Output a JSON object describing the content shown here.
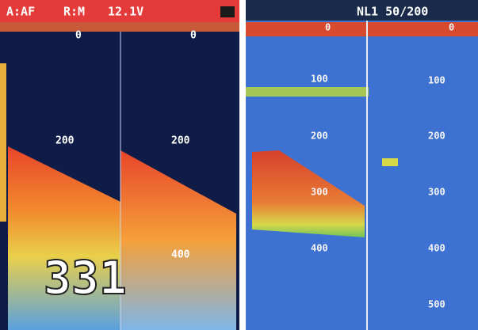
{
  "header_left": {
    "mode": "A:AF",
    "range": "R:M",
    "voltage": "12.1V"
  },
  "header_right": {
    "label": "NL1 50/200"
  },
  "panels": [
    {
      "depth_labels": [
        "0",
        "200"
      ],
      "depth_readout": "331"
    },
    {
      "depth_labels": [
        "0",
        "200",
        "400"
      ]
    },
    {
      "depth_labels": [
        "0",
        "100",
        "200",
        "300",
        "400"
      ]
    },
    {
      "depth_labels": [
        "0",
        "100",
        "200",
        "300",
        "400",
        "500"
      ]
    }
  ]
}
